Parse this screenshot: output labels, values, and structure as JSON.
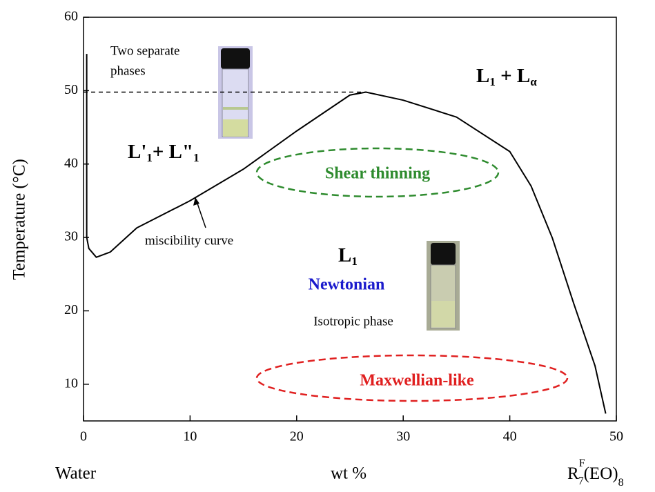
{
  "chart_data": {
    "type": "line",
    "x_label": "wt %",
    "y_label": "Temperature (°C)",
    "left_label": "Water",
    "right_label": [
      "R",
      "F",
      "7",
      "(EO)",
      "8"
    ],
    "xlim": [
      0,
      50
    ],
    "ylim": [
      5,
      60
    ],
    "xticks": [
      0,
      10,
      20,
      30,
      40,
      50
    ],
    "yticks": [
      10,
      20,
      30,
      40,
      50,
      60
    ],
    "series": [
      {
        "color": "#000000",
        "x": [
          0.3,
          0.3,
          0.3,
          0.3,
          0.5,
          1.2,
          2.5,
          5,
          10,
          15,
          20,
          25,
          26.5,
          30,
          35,
          40,
          42,
          44,
          46,
          48,
          49
        ],
        "values": [
          55,
          48,
          35,
          30,
          28.5,
          27.3,
          28.0,
          31.3,
          35,
          39.3,
          44.5,
          49.4,
          49.8,
          48.7,
          46.4,
          41.7,
          37,
          29.9,
          21,
          12.5,
          6
        ]
      }
    ],
    "reference_line": {
      "y": 49.8,
      "x": [
        0,
        26.5
      ]
    },
    "annotations": {
      "two_phases": [
        "Two separate",
        "phases"
      ],
      "upper_right": [
        "L",
        "1",
        " + L",
        "α"
      ],
      "left_region": [
        "L'",
        "1",
        "+ L\"",
        "1"
      ],
      "shear": "Shear thinning",
      "miscibility": "miscibility curve",
      "l1": [
        "L",
        "1"
      ],
      "newtonian": "Newtonian",
      "isotropic": "Isotropic phase",
      "maxwellian": "Maxwellian-like"
    }
  }
}
